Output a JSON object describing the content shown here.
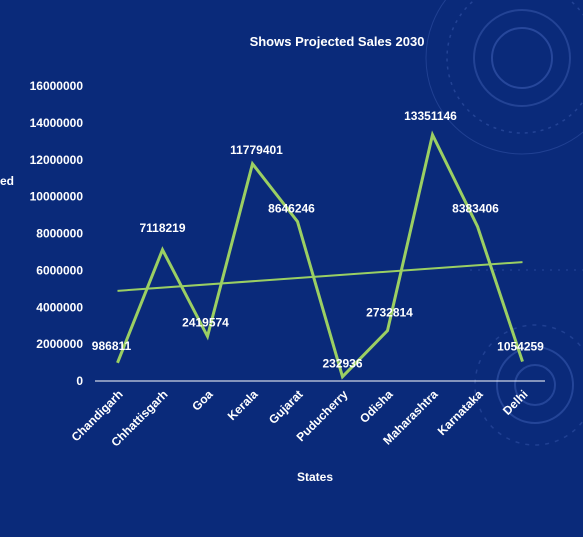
{
  "chart_data": {
    "type": "line",
    "title": "Shows Projected Sales 2030",
    "xlabel": "States",
    "ylabel_fragment": "ed",
    "categories": [
      "Chandigarh",
      "Chhattisgarh",
      "Goa",
      "Kerala",
      "Gujarat",
      "Puducherry",
      "Odisha",
      "Maharashtra",
      "Karnataka",
      "Delhi"
    ],
    "series": [
      {
        "values": [
          986811,
          7118219,
          2419574,
          11779401,
          8646246,
          232936,
          2732814,
          13351146,
          8383406,
          1054259
        ],
        "color": "#9bcf63"
      }
    ],
    "data_labels": [
      "986811",
      "7118219",
      "2419574",
      "11779401",
      "8646246",
      "232936",
      "2732814",
      "13351146",
      "8383406",
      "1054259"
    ],
    "trendline": {
      "type": "linear",
      "color": "#9bcf63"
    },
    "yticks": [
      "0",
      "2000000",
      "4000000",
      "6000000",
      "8000000",
      "10000000",
      "12000000",
      "14000000",
      "16000000"
    ],
    "ylim": [
      0,
      16000000
    ],
    "grid": false,
    "legend": "none",
    "background": "#0a2a7a",
    "text_color": "#ffffff"
  }
}
